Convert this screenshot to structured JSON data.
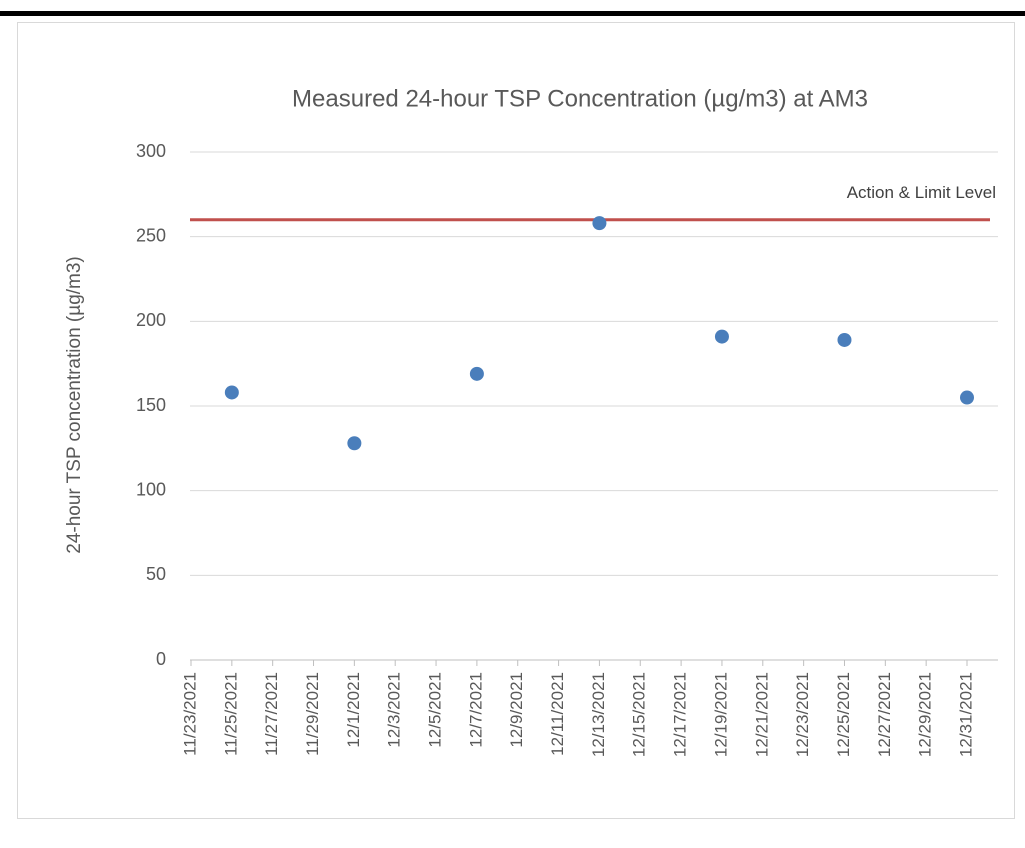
{
  "chart_data": {
    "type": "scatter",
    "title": "Measured 24-hour TSP Concentration (µg/m3) at AM3",
    "y_label": "24-hour TSP concentration (µg/m3)",
    "x": [
      "11/25/2021",
      "12/1/2021",
      "12/7/2021",
      "12/13/2021",
      "12/19/2021",
      "12/25/2021",
      "12/31/2021"
    ],
    "values": [
      158,
      128,
      169,
      258,
      191,
      189,
      155
    ],
    "color": "#4a7ebb",
    "xlim": [
      "11/23/2021",
      "12/31/2021"
    ],
    "xticks": [
      "11/23/2021",
      "11/25/2021",
      "11/27/2021",
      "11/29/2021",
      "12/1/2021",
      "12/3/2021",
      "12/5/2021",
      "12/7/2021",
      "12/9/2021",
      "12/11/2021",
      "12/13/2021",
      "12/15/2021",
      "12/17/2021",
      "12/19/2021",
      "12/21/2021",
      "12/23/2021",
      "12/25/2021",
      "12/27/2021",
      "12/29/2021",
      "12/31/2021"
    ],
    "ylim": [
      0,
      300
    ],
    "yticks": [
      0,
      50,
      100,
      150,
      200,
      250,
      300
    ],
    "grid": true,
    "reference_line": {
      "value": 260,
      "label": "Action & Limit Level",
      "color": "#c0504d"
    }
  }
}
